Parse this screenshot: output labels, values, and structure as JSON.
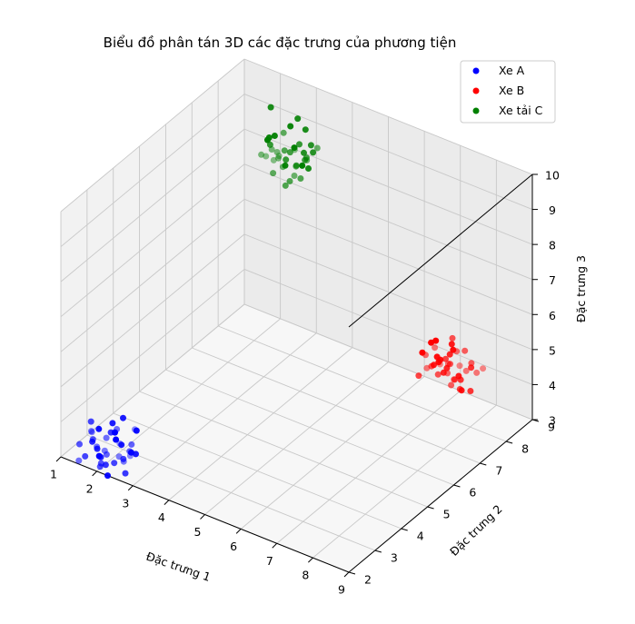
{
  "chart_data": {
    "type": "scatter",
    "projection": "3d",
    "title": "Biểu đồ phân tán 3D các đặc trưng của phương tiện",
    "xlabel": "Đặc trưng 1",
    "ylabel": "Đặc trưng 2",
    "zlabel": "Đặc trưng 3",
    "xlim": [
      1,
      9
    ],
    "ylim": [
      2,
      9
    ],
    "zlim": [
      3,
      10
    ],
    "xticks": [
      "1",
      "2",
      "3",
      "4",
      "5",
      "6",
      "7",
      "8",
      "9"
    ],
    "yticks": [
      "2",
      "3",
      "4",
      "5",
      "6",
      "7",
      "8",
      "9"
    ],
    "zticks": [
      "3",
      "4",
      "5",
      "6",
      "7",
      "8",
      "9",
      "10"
    ],
    "grid": true,
    "legend": "top-right",
    "series": [
      {
        "name": "Xe A",
        "color": "#0000ff",
        "points": [
          [
            1.5,
            2.5,
            3.6
          ],
          [
            1.9,
            2.3,
            3.0
          ],
          [
            2.1,
            2.8,
            3.3
          ],
          [
            1.7,
            2.2,
            3.9
          ],
          [
            2.3,
            2.6,
            3.1
          ],
          [
            1.4,
            2.9,
            3.4
          ],
          [
            2.0,
            2.0,
            3.7
          ],
          [
            2.5,
            2.4,
            2.9
          ],
          [
            1.8,
            3.0,
            3.2
          ],
          [
            2.2,
            2.1,
            3.5
          ],
          [
            1.6,
            2.7,
            2.8
          ],
          [
            2.4,
            2.9,
            3.8
          ],
          [
            1.3,
            2.3,
            3.3
          ],
          [
            2.0,
            2.6,
            4.0
          ],
          [
            2.6,
            2.2,
            3.4
          ],
          [
            1.9,
            2.8,
            2.7
          ],
          [
            2.3,
            3.1,
            3.6
          ],
          [
            1.5,
            2.0,
            3.1
          ],
          [
            2.1,
            2.4,
            3.9
          ],
          [
            1.7,
            2.5,
            3.0
          ],
          [
            2.4,
            2.7,
            3.3
          ],
          [
            1.8,
            2.1,
            3.7
          ],
          [
            2.2,
            3.0,
            2.9
          ],
          [
            1.6,
            2.4,
            3.5
          ],
          [
            2.5,
            2.8,
            3.2
          ],
          [
            2.0,
            2.3,
            3.4
          ],
          [
            1.4,
            2.6,
            3.8
          ],
          [
            2.3,
            2.0,
            3.0
          ],
          [
            1.9,
            2.9,
            3.6
          ],
          [
            2.1,
            2.2,
            3.1
          ],
          [
            1.7,
            3.1,
            3.3
          ],
          [
            2.6,
            2.5,
            3.7
          ],
          [
            1.5,
            2.7,
            3.0
          ],
          [
            2.2,
            2.6,
            3.5
          ],
          [
            1.8,
            2.4,
            2.8
          ],
          [
            2.0,
            3.0,
            3.9
          ],
          [
            2.4,
            2.3,
            3.4
          ],
          [
            1.6,
            2.1,
            3.2
          ],
          [
            2.3,
            2.9,
            3.1
          ],
          [
            1.9,
            2.5,
            3.6
          ]
        ]
      },
      {
        "name": "Xe B",
        "color": "#ff0000",
        "points": [
          [
            7.6,
            7.4,
            5.0
          ],
          [
            8.1,
            7.1,
            5.4
          ],
          [
            7.9,
            7.7,
            4.6
          ],
          [
            8.4,
            7.3,
            5.2
          ],
          [
            7.3,
            7.0,
            4.8
          ],
          [
            8.0,
            6.8,
            5.6
          ],
          [
            7.7,
            7.9,
            5.1
          ],
          [
            8.3,
            7.6,
            4.4
          ],
          [
            7.5,
            7.2,
            5.7
          ],
          [
            8.2,
            7.0,
            4.9
          ],
          [
            7.8,
            7.5,
            5.3
          ],
          [
            8.5,
            7.8,
            5.0
          ],
          [
            7.4,
            7.6,
            4.5
          ],
          [
            8.0,
            7.3,
            5.8
          ],
          [
            7.6,
            6.9,
            5.2
          ],
          [
            8.3,
            7.2,
            4.7
          ],
          [
            7.9,
            7.0,
            5.5
          ],
          [
            7.2,
            7.4,
            5.1
          ],
          [
            8.1,
            7.9,
            4.8
          ],
          [
            7.7,
            7.1,
            5.9
          ],
          [
            8.4,
            7.5,
            5.3
          ],
          [
            7.5,
            7.8,
            4.6
          ],
          [
            8.0,
            7.6,
            5.0
          ],
          [
            7.8,
            6.8,
            5.4
          ],
          [
            8.2,
            7.4,
            4.5
          ],
          [
            7.6,
            7.2,
            5.6
          ],
          [
            8.3,
            7.0,
            5.1
          ],
          [
            7.3,
            7.7,
            4.9
          ],
          [
            7.9,
            7.3,
            5.2
          ],
          [
            8.1,
            7.5,
            4.7
          ],
          [
            7.4,
            7.0,
            5.5
          ],
          [
            8.0,
            7.8,
            5.3
          ],
          [
            7.7,
            7.4,
            4.8
          ],
          [
            8.2,
            7.1,
            5.0
          ],
          [
            7.8,
            7.6,
            5.7
          ],
          [
            7.5,
            7.3,
            5.0
          ],
          [
            8.4,
            7.7,
            4.9
          ],
          [
            7.9,
            7.2,
            5.4
          ],
          [
            7.6,
            7.9,
            5.1
          ],
          [
            8.1,
            7.0,
            5.2
          ]
        ]
      },
      {
        "name": "Xe tải C",
        "color": "#008000",
        "points": [
          [
            3.2,
            7.3,
            9.2
          ],
          [
            3.5,
            7.1,
            9.6
          ],
          [
            3.8,
            7.6,
            8.9
          ],
          [
            3.0,
            6.9,
            9.4
          ],
          [
            3.6,
            7.8,
            9.0
          ],
          [
            3.3,
            7.0,
            10.0
          ],
          [
            3.9,
            7.4,
            9.3
          ],
          [
            3.1,
            7.7,
            8.8
          ],
          [
            3.7,
            7.2,
            9.7
          ],
          [
            3.4,
            6.8,
            9.1
          ],
          [
            4.0,
            7.5,
            9.5
          ],
          [
            3.2,
            7.9,
            9.0
          ],
          [
            3.6,
            7.0,
            8.7
          ],
          [
            3.5,
            7.6,
            10.2
          ],
          [
            3.0,
            7.3,
            9.3
          ],
          [
            3.8,
            6.9,
            9.8
          ],
          [
            3.3,
            7.4,
            8.9
          ],
          [
            3.9,
            7.8,
            9.4
          ],
          [
            3.1,
            7.1,
            9.6
          ],
          [
            3.7,
            7.5,
            9.0
          ],
          [
            3.4,
            7.2,
            10.0
          ],
          [
            3.6,
            7.7,
            9.2
          ],
          [
            3.2,
            6.8,
            9.5
          ],
          [
            3.8,
            7.3,
            8.8
          ],
          [
            3.5,
            7.9,
            9.7
          ],
          [
            3.0,
            7.5,
            9.1
          ],
          [
            3.9,
            7.0,
            9.4
          ],
          [
            3.3,
            7.6,
            9.9
          ],
          [
            3.7,
            7.2,
            8.9
          ],
          [
            3.4,
            7.8,
            9.3
          ],
          [
            3.1,
            7.0,
            9.8
          ],
          [
            3.6,
            7.4,
            9.0
          ],
          [
            3.8,
            7.7,
            9.5
          ],
          [
            3.2,
            7.1,
            9.2
          ],
          [
            3.5,
            7.3,
            8.6
          ],
          [
            2.9,
            7.4,
            10.4
          ],
          [
            3.4,
            7.0,
            9.4
          ],
          [
            3.7,
            7.6,
            9.1
          ],
          [
            3.0,
            7.2,
            9.7
          ],
          [
            3.6,
            6.9,
            9.3
          ]
        ]
      }
    ]
  }
}
